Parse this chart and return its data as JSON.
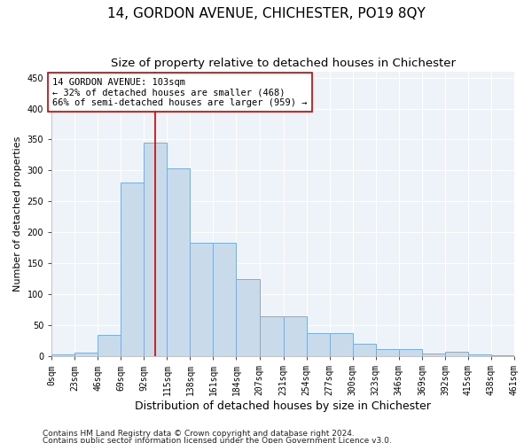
{
  "title": "14, GORDON AVENUE, CHICHESTER, PO19 8QY",
  "subtitle": "Size of property relative to detached houses in Chichester",
  "xlabel": "Distribution of detached houses by size in Chichester",
  "ylabel": "Number of detached properties",
  "bar_edges": [
    0,
    23,
    46,
    69,
    92,
    115,
    138,
    161,
    184,
    207,
    231,
    254,
    277,
    300,
    323,
    346,
    369,
    392,
    415,
    438,
    461
  ],
  "bar_heights": [
    3,
    6,
    35,
    280,
    345,
    303,
    183,
    183,
    124,
    65,
    65,
    37,
    37,
    20,
    11,
    11,
    5,
    8,
    3,
    2,
    0
  ],
  "bar_facecolor": "#c9daea",
  "bar_edgecolor": "#7eadd4",
  "vline_x": 103,
  "vline_color": "#cc0000",
  "ylim": [
    0,
    460
  ],
  "yticks": [
    0,
    50,
    100,
    150,
    200,
    250,
    300,
    350,
    400,
    450
  ],
  "annotation_text": "14 GORDON AVENUE: 103sqm\n← 32% of detached houses are smaller (468)\n66% of semi-detached houses are larger (959) →",
  "annotation_box_edgecolor": "#cc0000",
  "footnote1": "Contains HM Land Registry data © Crown copyright and database right 2024.",
  "footnote2": "Contains public sector information licensed under the Open Government Licence v3.0.",
  "background_color": "#eef2f9",
  "grid_color": "#ffffff",
  "title_fontsize": 11,
  "subtitle_fontsize": 9.5,
  "xlabel_fontsize": 9,
  "ylabel_fontsize": 8,
  "tick_fontsize": 7,
  "annotation_fontsize": 7.5,
  "footnote_fontsize": 6.5
}
